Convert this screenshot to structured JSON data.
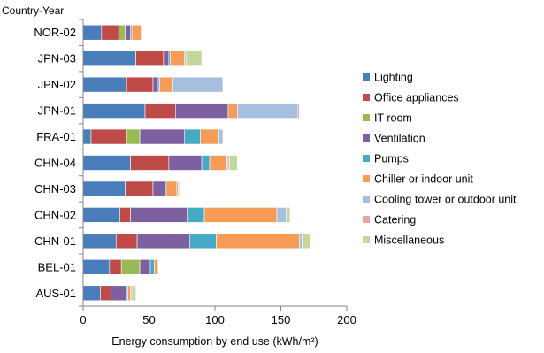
{
  "chart_data": {
    "type": "bar",
    "orientation": "horizontal",
    "stacked": true,
    "ylabel": "Country-Year",
    "xlabel": "Energy consumption by end use (kWh/m²)",
    "xlim": [
      0,
      200
    ],
    "xticks": [
      "0",
      "50",
      "100",
      "150",
      "200"
    ],
    "grid": false,
    "legend_position": "right",
    "categories": [
      "NOR-02",
      "JPN-03",
      "JPN-02",
      "JPN-01",
      "FRA-01",
      "CHN-04",
      "CHN-03",
      "CHN-02",
      "CHN-01",
      "BEL-01",
      "AUS-01"
    ],
    "series": [
      {
        "name": "Lighting",
        "color": "#4A7EBB",
        "values": [
          14,
          40,
          33,
          47,
          6,
          36,
          32,
          28,
          25,
          20,
          13
        ]
      },
      {
        "name": "Office appliances",
        "color": "#BE4B48",
        "values": [
          13,
          21,
          20,
          23,
          27,
          29,
          21,
          8,
          16,
          9,
          8
        ]
      },
      {
        "name": "IT room",
        "color": "#98B954",
        "values": [
          5,
          0,
          0,
          0,
          10,
          0,
          0,
          0,
          0,
          14,
          0
        ]
      },
      {
        "name": "Ventilation",
        "color": "#7D60A0",
        "values": [
          4,
          4,
          4,
          40,
          34,
          25,
          9,
          43,
          40,
          8,
          12
        ]
      },
      {
        "name": "Pumps",
        "color": "#46AAC5",
        "values": [
          1,
          1,
          1,
          0,
          12,
          6,
          1,
          13,
          20,
          3,
          1
        ]
      },
      {
        "name": "Chiller or indoor unit",
        "color": "#F59D56",
        "values": [
          7,
          11,
          10,
          7,
          14,
          13,
          8,
          55,
          63,
          2,
          2
        ]
      },
      {
        "name": "Cooling tower or outdoor unit",
        "color": "#A7BFDE",
        "values": [
          0,
          1,
          38,
          46,
          3,
          1,
          0,
          7,
          2,
          0,
          0
        ]
      },
      {
        "name": "Catering",
        "color": "#E6A5A4",
        "values": [
          0,
          0,
          0,
          1,
          0,
          1,
          1,
          0,
          0,
          0,
          1
        ]
      },
      {
        "name": "Miscellaneous",
        "color": "#C3D69B",
        "values": [
          0,
          12,
          0,
          0,
          0,
          6,
          1,
          3,
          6,
          1,
          3
        ]
      }
    ]
  }
}
